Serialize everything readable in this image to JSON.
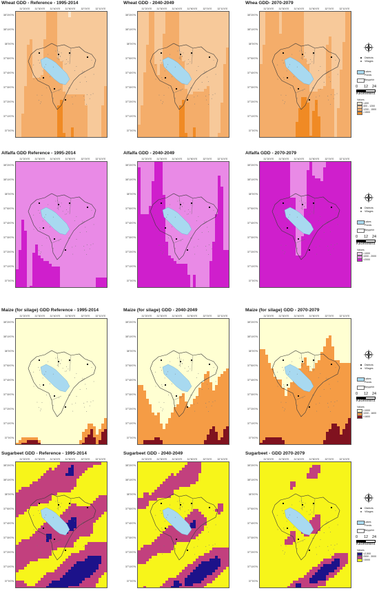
{
  "x_ticks": [
    "31°20'0\"E",
    "31°30'0\"E",
    "31°40'0\"E",
    "31°50'0\"E",
    "32°0'0\"E",
    "32°10'0\"E"
  ],
  "y_ticks": [
    "38°20'0\"N",
    "38°10'0\"N",
    "38°0'0\"N",
    "37°50'0\"N",
    "37°40'0\"N",
    "37°30'0\"N",
    "37°20'0\"N",
    "37°10'0\"N",
    "37°0'0\"N"
  ],
  "legend_common": {
    "districts": "Districts",
    "villages": "Villages",
    "lakes": "Lakes",
    "ponds": "Ponds",
    "basin": "Beyşehir",
    "scale": [
      "0",
      "12",
      "24"
    ],
    "km": "Kilometers",
    "values": "Values"
  },
  "rows": [
    {
      "crop": "wheat",
      "titles": [
        "Wheat GDD - Reference - 1995-2014",
        "Wheat GDD - 2040-2049",
        "Whea GDD- 2070-2079"
      ],
      "palette": [
        "#fbe7cf",
        "#f7c99a",
        "#f4ad6a",
        "#f08a24"
      ],
      "classes": [
        "<400",
        "400 - 1200",
        "1200 - 1500",
        ">1500"
      ],
      "class_fraction": [
        [
          0.18,
          0.4,
          0.3,
          0.12
        ],
        [
          0.1,
          0.42,
          0.36,
          0.12
        ],
        [
          0.05,
          0.38,
          0.4,
          0.17
        ]
      ]
    },
    {
      "crop": "alfalfa",
      "titles": [
        "Alfalfa GDD  Reference - 1995-2014",
        "Alfalfa GDD - 2040-2049",
        "Alfalfa GDD - 2070-2079"
      ],
      "palette": [
        "#f6d0f4",
        "#e98ae6",
        "#cf1fcc"
      ],
      "classes": [
        "<1000",
        "1000 - 2000",
        ">2000"
      ],
      "class_fraction": [
        [
          0.1,
          0.65,
          0.25
        ],
        [
          0.06,
          0.54,
          0.4
        ],
        [
          0.03,
          0.3,
          0.67
        ]
      ]
    },
    {
      "crop": "maize",
      "titles": [
        "Maize (for silage) GDD Reference - 1995-2014",
        "Maize (for silage) GDD - 2040-2049",
        "Maize (for silage) GDD - 2070-2079"
      ],
      "palette": [
        "#ffffd2",
        "#f59c45",
        "#80121f"
      ],
      "classes": [
        "<1000",
        "1000 - 1600",
        ">1600"
      ],
      "class_fraction": [
        [
          0.9,
          0.05,
          0.05
        ],
        [
          0.62,
          0.31,
          0.07
        ],
        [
          0.45,
          0.45,
          0.1
        ]
      ]
    },
    {
      "crop": "sugarbeet",
      "titles": [
        "Sugarbeet GDD - Reference - 1995-2014",
        "Sugarbeet GDD - 2040-2049",
        "Sugarbeet - GDD 2070-2079"
      ],
      "palette": [
        "#1c128a",
        "#c2407e",
        "#f7f51a"
      ],
      "classes": [
        "<2,500",
        "2500 - 3000",
        ">3000"
      ],
      "class_fraction": [
        [
          0.16,
          0.34,
          0.5
        ],
        [
          0.11,
          0.24,
          0.65
        ],
        [
          0.07,
          0.13,
          0.8
        ]
      ]
    }
  ],
  "colors": {
    "lake": "#a8d9f0",
    "basin_line": "#3a3a3a",
    "district_dot": "#000000",
    "village_dot": "#777777"
  }
}
